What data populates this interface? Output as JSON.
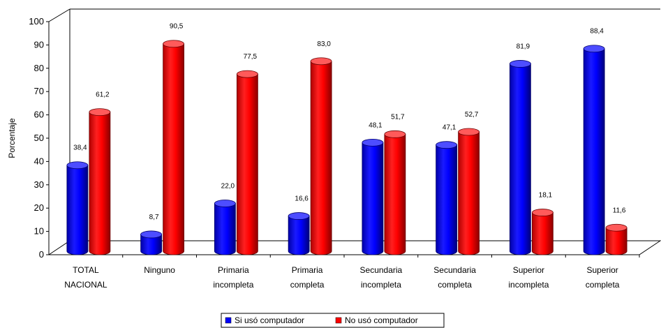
{
  "chart_data": {
    "type": "bar",
    "ylabel": "Porcentaje",
    "ylim": [
      0,
      100
    ],
    "yticks": [
      "0",
      "10",
      "20",
      "30",
      "40",
      "50",
      "60",
      "70",
      "80",
      "90",
      "100"
    ],
    "categories": [
      [
        "TOTAL",
        "NACIONAL"
      ],
      [
        "Ninguno"
      ],
      [
        "Primaria",
        "incompleta"
      ],
      [
        "Primaria",
        "completa"
      ],
      [
        "Secundaria",
        "incompleta"
      ],
      [
        "Secundaria",
        "completa"
      ],
      [
        "Superior",
        "incompleta"
      ],
      [
        "Superior",
        "completa"
      ]
    ],
    "series": [
      {
        "name": "Si usó computador",
        "color": "#0000ff",
        "values": [
          38.4,
          8.7,
          22.0,
          16.6,
          48.1,
          47.1,
          81.9,
          88.4
        ],
        "labels": [
          "38,4",
          "8,7",
          "22,0",
          "16,6",
          "48,1",
          "47,1",
          "81,9",
          "88,4"
        ]
      },
      {
        "name": "No usó computador",
        "color": "#ff0000",
        "values": [
          61.2,
          90.5,
          77.5,
          83.0,
          51.7,
          52.7,
          18.1,
          11.6
        ],
        "labels": [
          "61,2",
          "90,5",
          "77,5",
          "83,0",
          "51,7",
          "52,7",
          "18,1",
          "11,6"
        ]
      }
    ],
    "legend_position": "bottom",
    "grid": false,
    "style": "3d-cylinder"
  }
}
